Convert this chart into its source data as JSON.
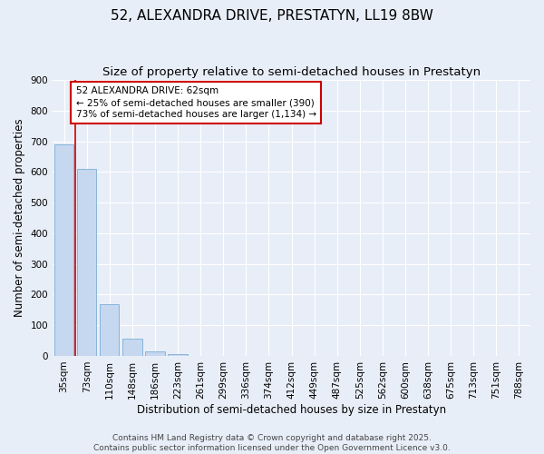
{
  "title": "52, ALEXANDRA DRIVE, PRESTATYN, LL19 8BW",
  "subtitle": "Size of property relative to semi-detached houses in Prestatyn",
  "xlabel": "Distribution of semi-detached houses by size in Prestatyn",
  "ylabel": "Number of semi-detached properties",
  "footer_line1": "Contains HM Land Registry data © Crown copyright and database right 2025.",
  "footer_line2": "Contains public sector information licensed under the Open Government Licence v3.0.",
  "bin_labels": [
    "35sqm",
    "73sqm",
    "110sqm",
    "148sqm",
    "186sqm",
    "223sqm",
    "261sqm",
    "299sqm",
    "336sqm",
    "374sqm",
    "412sqm",
    "449sqm",
    "487sqm",
    "525sqm",
    "562sqm",
    "600sqm",
    "638sqm",
    "675sqm",
    "713sqm",
    "751sqm",
    "788sqm"
  ],
  "bar_values": [
    690,
    610,
    170,
    57,
    15,
    5,
    0,
    0,
    0,
    0,
    0,
    0,
    0,
    0,
    0,
    0,
    0,
    0,
    0,
    0,
    0
  ],
  "bar_color": "#c5d8f0",
  "bar_edge_color": "#7aadd4",
  "background_color": "#e8eef8",
  "grid_color": "#ffffff",
  "vline_color": "#cc0000",
  "vline_x": 1,
  "annotation_line1": "52 ALEXANDRA DRIVE: 62sqm",
  "annotation_line2": "← 25% of semi-detached houses are smaller (390)",
  "annotation_line3": "73% of semi-detached houses are larger (1,134) →",
  "annotation_box_color": "#cc0000",
  "annotation_bg": "#ffffff",
  "ylim": [
    0,
    900
  ],
  "yticks": [
    0,
    100,
    200,
    300,
    400,
    500,
    600,
    700,
    800,
    900
  ],
  "title_fontsize": 11,
  "subtitle_fontsize": 9.5,
  "axis_label_fontsize": 8.5,
  "tick_fontsize": 7.5,
  "annotation_fontsize": 7.5,
  "footer_fontsize": 6.5
}
